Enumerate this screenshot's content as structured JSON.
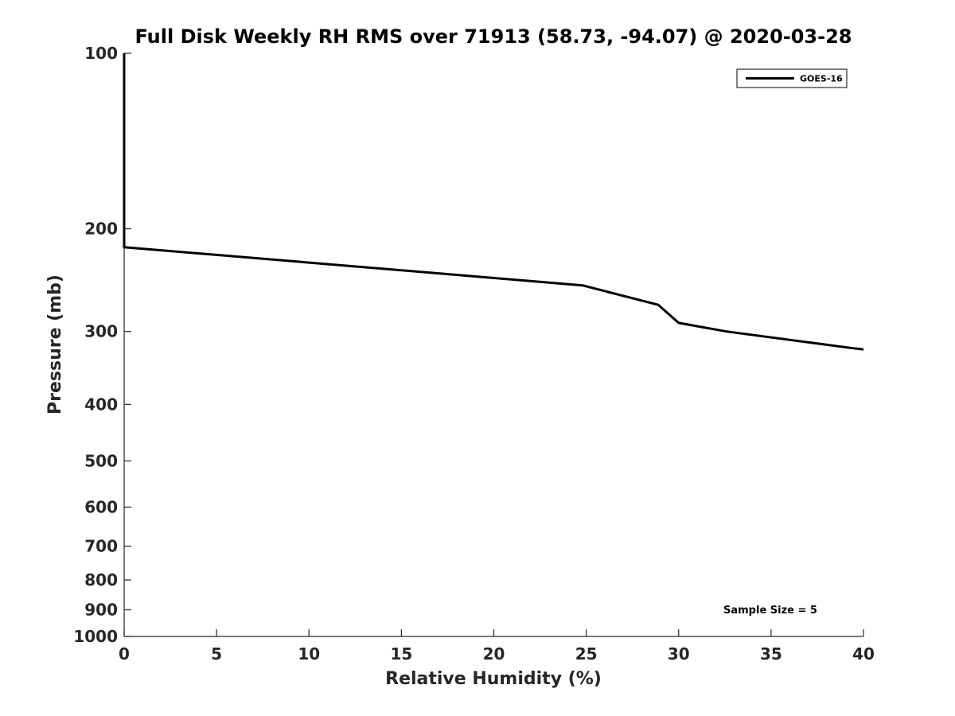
{
  "chart_data": {
    "type": "line",
    "title": "Full Disk Weekly RH RMS over 71913 (58.73, -94.07) @ 2020-03-28",
    "xlabel": "Relative Humidity (%)",
    "ylabel": "Pressure (mb)",
    "xlim": [
      0,
      40
    ],
    "ylim": [
      100,
      1000
    ],
    "y_scale": "log",
    "y_reversed": true,
    "x_ticks": [
      0,
      5,
      10,
      15,
      20,
      25,
      30,
      35,
      40
    ],
    "x_tick_labels": [
      "0",
      "5",
      "10",
      "15",
      "20",
      "25",
      "30",
      "35",
      "40"
    ],
    "y_ticks": [
      100,
      200,
      300,
      400,
      500,
      600,
      700,
      800,
      900,
      1000
    ],
    "y_tick_labels": [
      "100",
      "200",
      "300",
      "400",
      "500",
      "600",
      "700",
      "800",
      "900",
      "1000"
    ],
    "grid": false,
    "legend": {
      "position": "top-right",
      "entries": [
        "GOES-16"
      ]
    },
    "series": [
      {
        "name": "GOES-16",
        "color": "#000000",
        "x": [
          0.0,
          0.0,
          0.0,
          24.8,
          28.9,
          30.0,
          32.6,
          39.3,
          40.0
        ],
        "y": [
          100,
          200,
          215,
          250,
          270,
          290,
          300,
          320,
          322
        ]
      }
    ],
    "annotation": {
      "text": "Sample Size = 5",
      "position": "bottom-right"
    }
  }
}
